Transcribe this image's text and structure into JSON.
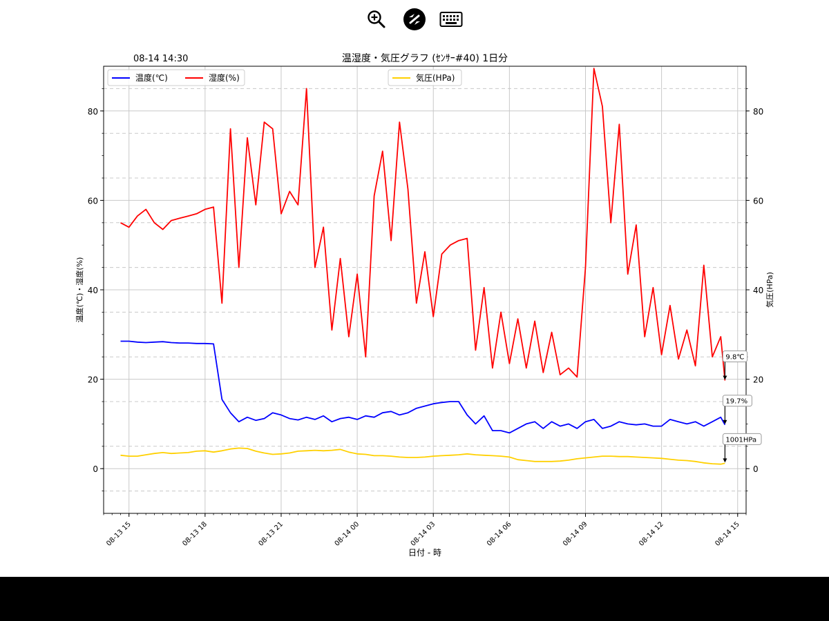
{
  "toolbar": {
    "icons": [
      "zoom-in-icon",
      "remote-desktop-icon",
      "keyboard-icon"
    ]
  },
  "chart_data": {
    "type": "line",
    "title": "温湿度・気圧グラフ (ｾﾝｻｰ#40) 1日分",
    "timestamp": "08-14 14:30",
    "xlabel": "日付 - 時",
    "ylabel": "温度(℃)・湿度(%)",
    "ylabel_right": "気圧(HPa)",
    "xlim": [
      "08-13 14:00",
      "08-14 15:20"
    ],
    "ylim": [
      -10,
      90
    ],
    "ylim_right": [
      -10,
      90
    ],
    "x_ticks": [
      "08-13 15",
      "08-13 18",
      "08-13 21",
      "08-14 00",
      "08-14 03",
      "08-14 06",
      "08-14 09",
      "08-14 12",
      "08-14 15"
    ],
    "y_ticks": [
      0,
      20,
      40,
      60,
      80
    ],
    "y_ticks_right": [
      0,
      20,
      40,
      60,
      80
    ],
    "grid": true,
    "legend_left": {
      "placement": "upper-left",
      "entries": [
        "温度(℃)",
        "湿度(%)"
      ]
    },
    "legend_right": {
      "placement": "upper-center",
      "entries": [
        "気圧(HPa)"
      ]
    },
    "annotations": [
      "19.7%",
      "9.8℃",
      "1001HPa"
    ],
    "colors": {
      "temperature": "#0000ff",
      "humidity": "#ff0000",
      "pressure": "#ffd000",
      "grid": "#c8c8c8",
      "dashed": "#c8c8c8"
    },
    "x": [
      "08-13 14:40",
      "08-13 15:00",
      "08-13 15:20",
      "08-13 15:40",
      "08-13 16:00",
      "08-13 16:20",
      "08-13 16:40",
      "08-13 17:00",
      "08-13 17:20",
      "08-13 17:40",
      "08-13 18:00",
      "08-13 18:20",
      "08-13 18:40",
      "08-13 19:00",
      "08-13 19:20",
      "08-13 19:40",
      "08-13 20:00",
      "08-13 20:20",
      "08-13 20:40",
      "08-13 21:00",
      "08-13 21:20",
      "08-13 21:40",
      "08-13 22:00",
      "08-13 22:20",
      "08-13 22:40",
      "08-13 23:00",
      "08-13 23:20",
      "08-13 23:40",
      "08-14 00:00",
      "08-14 00:20",
      "08-14 00:40",
      "08-14 01:00",
      "08-14 01:20",
      "08-14 01:40",
      "08-14 02:00",
      "08-14 02:20",
      "08-14 02:40",
      "08-14 03:00",
      "08-14 03:20",
      "08-14 03:40",
      "08-14 04:00",
      "08-14 04:20",
      "08-14 04:40",
      "08-14 05:00",
      "08-14 05:20",
      "08-14 05:40",
      "08-14 06:00",
      "08-14 06:20",
      "08-14 06:40",
      "08-14 07:00",
      "08-14 07:20",
      "08-14 07:40",
      "08-14 08:00",
      "08-14 08:20",
      "08-14 08:40",
      "08-14 09:00",
      "08-14 09:20",
      "08-14 09:40",
      "08-14 10:00",
      "08-14 10:20",
      "08-14 10:40",
      "08-14 11:00",
      "08-14 11:20",
      "08-14 11:40",
      "08-14 12:00",
      "08-14 12:20",
      "08-14 12:40",
      "08-14 13:00",
      "08-14 13:20",
      "08-14 13:40",
      "08-14 14:00",
      "08-14 14:20",
      "08-14 14:30"
    ],
    "series": [
      {
        "name": "温度(℃)",
        "axis": "left",
        "values": [
          28.5,
          28.5,
          28.3,
          28.2,
          28.3,
          28.4,
          28.2,
          28.1,
          28.1,
          28.0,
          28.0,
          27.9,
          15.5,
          12.5,
          10.5,
          11.5,
          10.8,
          11.2,
          12.5,
          12.0,
          11.2,
          10.9,
          11.5,
          11.0,
          11.8,
          10.5,
          11.2,
          11.5,
          11.0,
          11.8,
          11.5,
          12.5,
          12.8,
          12.0,
          12.5,
          13.5,
          14.0,
          14.5,
          14.8,
          15.0,
          15.0,
          12.0,
          10.0,
          11.8,
          8.5,
          8.5,
          8.0,
          9.0,
          10.0,
          10.5,
          9.0,
          10.5,
          9.5,
          10.0,
          9.0,
          10.5,
          11.0,
          9.0,
          9.5,
          10.5,
          10.0,
          9.8,
          10.0,
          9.5,
          9.5,
          11.0,
          10.5,
          10.0,
          10.5,
          9.5,
          10.5,
          11.5,
          9.8
        ]
      },
      {
        "name": "湿度(%)",
        "axis": "left",
        "values": [
          55.0,
          54.0,
          56.5,
          58.0,
          55.0,
          53.5,
          55.5,
          56.0,
          56.5,
          57.0,
          58.0,
          58.5,
          37.0,
          76.0,
          45.0,
          74.0,
          59.0,
          77.5,
          76.0,
          57.0,
          62.0,
          59.0,
          85.0,
          45.0,
          54.0,
          31.0,
          47.0,
          29.5,
          43.5,
          25.0,
          61.0,
          71.0,
          51.0,
          77.5,
          62.5,
          37.0,
          48.5,
          34.0,
          48.0,
          50.0,
          51.0,
          51.5,
          26.5,
          40.5,
          22.5,
          35.0,
          23.5,
          33.5,
          22.5,
          33.0,
          21.5,
          30.5,
          21.0,
          22.5,
          20.5,
          45.0,
          89.5,
          81.0,
          55.0,
          77.0,
          43.5,
          54.5,
          29.5,
          40.5,
          25.5,
          36.5,
          24.5,
          31.0,
          23.0,
          45.5,
          25.0,
          29.5,
          19.7
        ]
      },
      {
        "name": "気圧(HPa)",
        "axis": "right",
        "values": [
          3.0,
          2.8,
          2.8,
          3.1,
          3.4,
          3.6,
          3.4,
          3.5,
          3.6,
          3.9,
          4.0,
          3.7,
          4.0,
          4.4,
          4.6,
          4.5,
          3.9,
          3.5,
          3.2,
          3.3,
          3.5,
          3.9,
          4.0,
          4.1,
          4.0,
          4.1,
          4.3,
          3.7,
          3.3,
          3.2,
          2.9,
          2.9,
          2.8,
          2.6,
          2.5,
          2.5,
          2.6,
          2.8,
          2.9,
          3.0,
          3.1,
          3.3,
          3.1,
          3.0,
          2.9,
          2.8,
          2.6,
          2.0,
          1.8,
          1.6,
          1.6,
          1.6,
          1.7,
          1.9,
          2.2,
          2.4,
          2.6,
          2.8,
          2.8,
          2.7,
          2.7,
          2.6,
          2.5,
          2.4,
          2.3,
          2.1,
          1.9,
          1.8,
          1.6,
          1.3,
          1.1,
          1.0,
          1.2
        ]
      }
    ]
  }
}
